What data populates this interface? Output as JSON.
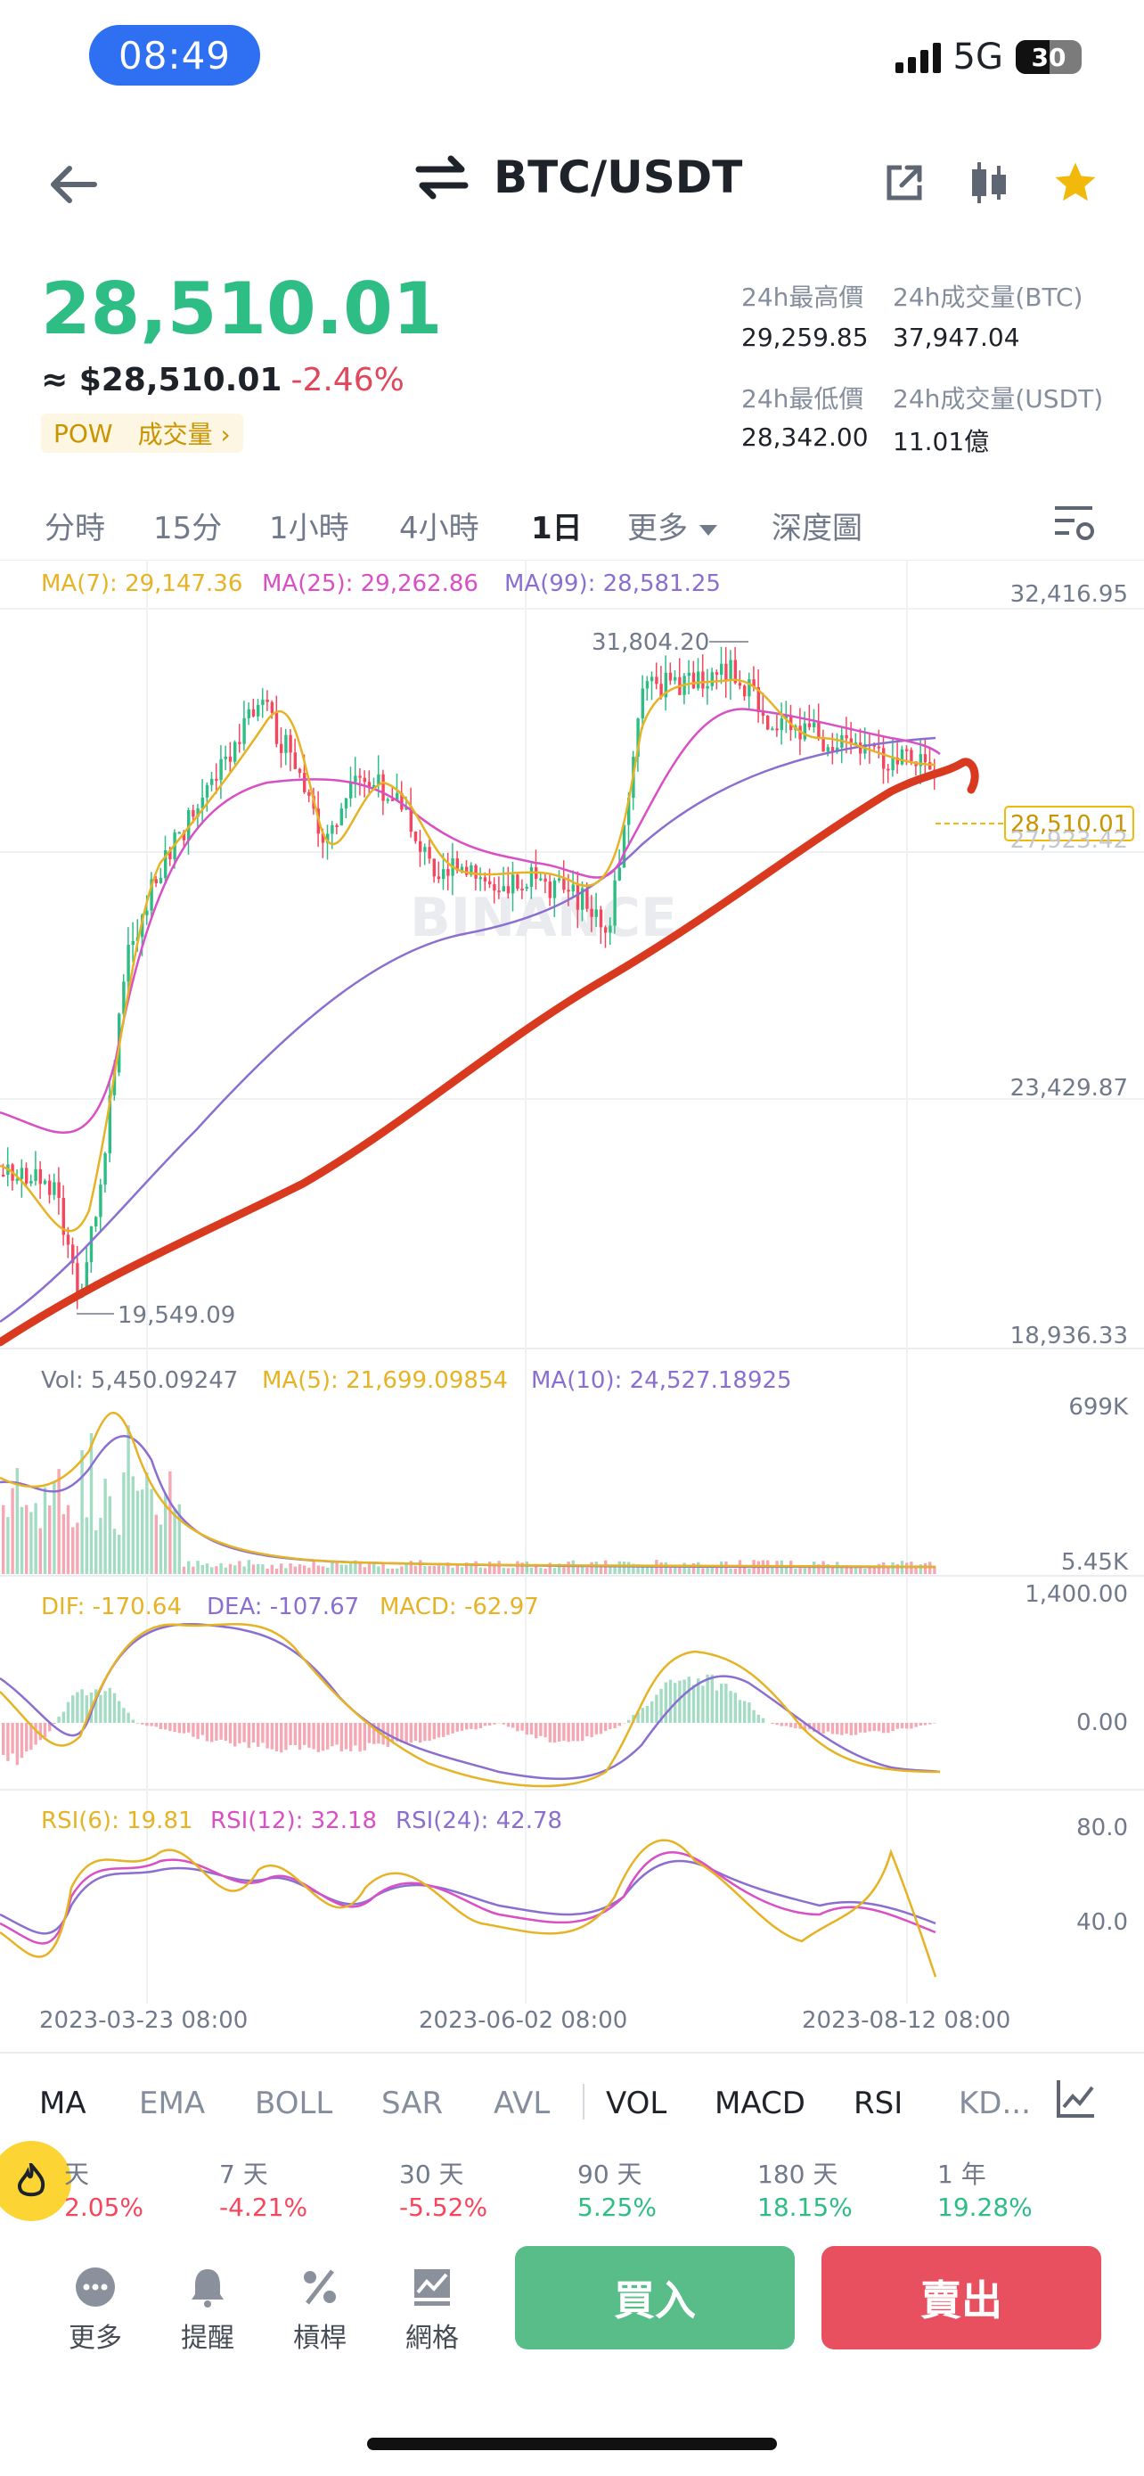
{
  "status": {
    "time": "08:49",
    "network": "5G",
    "battery": "30"
  },
  "header": {
    "pair": "BTC/USDT"
  },
  "price": {
    "last": "28,510.01",
    "fiat": "≈ $28,510.01",
    "change": "-2.46%",
    "tag1": "POW",
    "tag2": "成交量 ›"
  },
  "stats": {
    "high_label": "24h最高價",
    "high_value": "29,259.85",
    "volbtc_label": "24h成交量(BTC)",
    "volbtc_value": "37,947.04",
    "low_label": "24h最低價",
    "low_value": "28,342.00",
    "volusdt_label": "24h成交量(USDT)",
    "volusdt_value": "11.01億"
  },
  "timeframes": [
    "分時",
    "15分",
    "1小時",
    "4小時",
    "1日",
    "更多",
    "深度圖"
  ],
  "active_timeframe": "1日",
  "chart": {
    "ma7": "MA(7): 29,147.36",
    "ma25": "MA(25): 29,262.86",
    "ma99": "MA(99): 28,581.25",
    "price_axis": [
      "32,416.95",
      "27,923.42",
      "23,429.87",
      "18,936.33"
    ],
    "high_marker": "31,804.20",
    "low_marker": "19,549.09",
    "current_label": "28,510.01",
    "watermark": "BINANCE",
    "vol": "Vol: 5,450.09247",
    "vol_ma5": "MA(5): 21,699.09854",
    "vol_ma10": "MA(10): 24,527.18925",
    "vol_axis": [
      "699K",
      "5.45K"
    ],
    "dif": "DIF: -170.64",
    "dea": "DEA: -107.67",
    "macd": "MACD: -62.97",
    "macd_axis": [
      "1,400.00",
      "0.00"
    ],
    "rsi6": "RSI(6): 19.81",
    "rsi12": "RSI(12): 32.18",
    "rsi24": "RSI(24): 42.78",
    "rsi_axis": [
      "80.0",
      "40.0"
    ],
    "dates": [
      "2023-03-23 08:00",
      "2023-06-02 08:00",
      "2023-08-12 08:00"
    ]
  },
  "colors": {
    "up": "#2ebd85",
    "down": "#f6465d",
    "ma7": "#e6b325",
    "ma25": "#d94fc4",
    "ma99": "#8a6fd1",
    "trend": "#d9391f",
    "accent": "#f0b90b"
  },
  "indicators": [
    "MA",
    "EMA",
    "BOLL",
    "SAR",
    "AVL",
    "VOL",
    "MACD",
    "RSI",
    "KD..."
  ],
  "performance": [
    {
      "label": "天",
      "value": "2.05%"
    },
    {
      "label": "7 天",
      "value": "-4.21%"
    },
    {
      "label": "30 天",
      "value": "-5.52%"
    },
    {
      "label": "90 天",
      "value": "5.25%"
    },
    {
      "label": "180 天",
      "value": "18.15%"
    },
    {
      "label": "1 年",
      "value": "19.28%"
    }
  ],
  "actions": {
    "more": "更多",
    "alert": "提醒",
    "leverage": "槓桿",
    "grid": "網格",
    "buy": "買入",
    "sell": "賣出"
  }
}
